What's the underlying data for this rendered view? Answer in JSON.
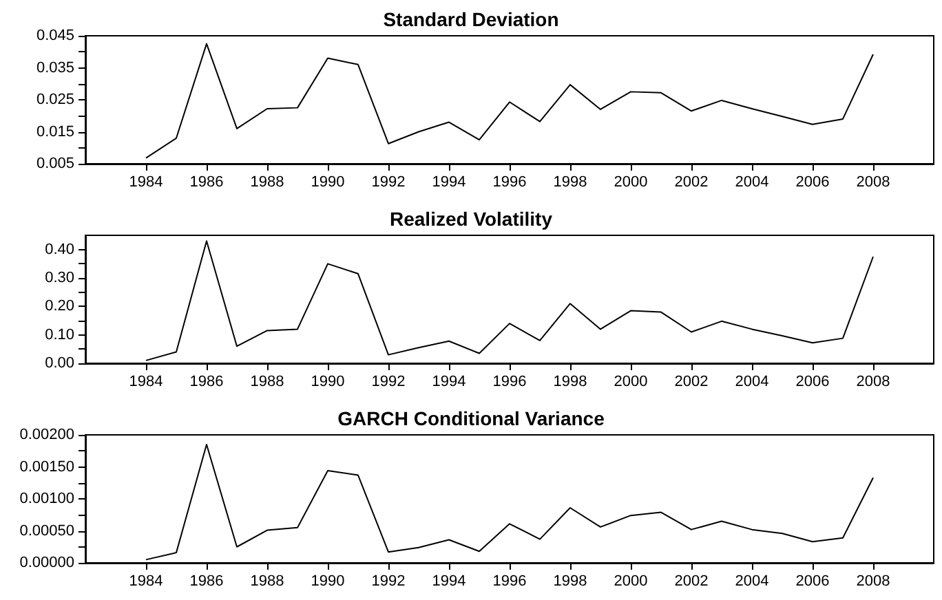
{
  "chart_data": [
    {
      "type": "line",
      "title": "Standard Deviation",
      "x": [
        1984,
        1985,
        1986,
        1987,
        1988,
        1989,
        1990,
        1991,
        1992,
        1993,
        1994,
        1995,
        1996,
        1997,
        1998,
        1999,
        2000,
        2001,
        2002,
        2003,
        2004,
        2005,
        2006,
        2007,
        2008
      ],
      "series": [
        {
          "color": "#000000",
          "values": [
            0.0068,
            0.013,
            0.0425,
            0.016,
            0.0222,
            0.0225,
            0.038,
            0.036,
            0.0113,
            0.015,
            0.018,
            0.0125,
            0.0243,
            0.0182,
            0.0297,
            0.022,
            0.0275,
            0.0272,
            0.0215,
            0.0248,
            0.0222,
            0.0198,
            0.0173,
            0.019,
            0.0392
          ]
        }
      ],
      "xlim": [
        1982,
        2010
      ],
      "xticks": [
        1984,
        1986,
        1988,
        1990,
        1992,
        1994,
        1996,
        1998,
        2000,
        2002,
        2004,
        2006,
        2008
      ],
      "ylim": [
        0.005,
        0.045
      ],
      "yticks": [
        {
          "value": 0.005,
          "label": "0.005"
        },
        {
          "value": 0.01,
          "label": null
        },
        {
          "value": 0.015,
          "label": "0.015"
        },
        {
          "value": 0.02,
          "label": null
        },
        {
          "value": 0.025,
          "label": "0.025"
        },
        {
          "value": 0.03,
          "label": null
        },
        {
          "value": 0.035,
          "label": "0.035"
        },
        {
          "value": 0.04,
          "label": null
        },
        {
          "value": 0.045,
          "label": "0.045"
        }
      ],
      "grid": false,
      "marker": "none",
      "line_style": "solid"
    },
    {
      "type": "line",
      "title": "Realized Volatility",
      "x": [
        1984,
        1985,
        1986,
        1987,
        1988,
        1989,
        1990,
        1991,
        1992,
        1993,
        1994,
        1995,
        1996,
        1997,
        1998,
        1999,
        2000,
        2001,
        2002,
        2003,
        2004,
        2005,
        2006,
        2007,
        2008
      ],
      "series": [
        {
          "color": "#000000",
          "values": [
            0.01,
            0.04,
            0.43,
            0.06,
            0.115,
            0.12,
            0.35,
            0.315,
            0.03,
            0.055,
            0.078,
            0.035,
            0.14,
            0.08,
            0.21,
            0.12,
            0.185,
            0.18,
            0.11,
            0.148,
            0.12,
            0.097,
            0.072,
            0.088,
            0.375
          ]
        }
      ],
      "xlim": [
        1982,
        2010
      ],
      "xticks": [
        1984,
        1986,
        1988,
        1990,
        1992,
        1994,
        1996,
        1998,
        2000,
        2002,
        2004,
        2006,
        2008
      ],
      "ylim": [
        0,
        0.45
      ],
      "yticks": [
        {
          "value": 0,
          "label": "0.00"
        },
        {
          "value": 0.05,
          "label": null
        },
        {
          "value": 0.1,
          "label": "0.10"
        },
        {
          "value": 0.15,
          "label": null
        },
        {
          "value": 0.2,
          "label": "0.20"
        },
        {
          "value": 0.25,
          "label": null
        },
        {
          "value": 0.3,
          "label": "0.30"
        },
        {
          "value": 0.35,
          "label": null
        },
        {
          "value": 0.4,
          "label": "0.40"
        }
      ],
      "grid": false,
      "marker": "none",
      "line_style": "solid"
    },
    {
      "type": "line",
      "title": "GARCH Conditional Variance",
      "x": [
        1984,
        1985,
        1986,
        1987,
        1988,
        1989,
        1990,
        1991,
        1992,
        1993,
        1994,
        1995,
        1996,
        1997,
        1998,
        1999,
        2000,
        2001,
        2002,
        2003,
        2004,
        2005,
        2006,
        2007,
        2008
      ],
      "series": [
        {
          "color": "#000000",
          "values": [
            5e-05,
            0.00016,
            0.00185,
            0.00025,
            0.00051,
            0.00055,
            0.00144,
            0.00137,
            0.00017,
            0.00024,
            0.00036,
            0.00018,
            0.00061,
            0.00037,
            0.00086,
            0.00056,
            0.00074,
            0.00079,
            0.00052,
            0.00065,
            0.00052,
            0.00046,
            0.00033,
            0.00039,
            0.00133
          ]
        }
      ],
      "xlim": [
        1982,
        2010
      ],
      "xticks": [
        1984,
        1986,
        1988,
        1990,
        1992,
        1994,
        1996,
        1998,
        2000,
        2002,
        2004,
        2006,
        2008
      ],
      "ylim": [
        0,
        0.002
      ],
      "yticks": [
        {
          "value": 0,
          "label": "0.00000"
        },
        {
          "value": 0.00025,
          "label": null
        },
        {
          "value": 0.0005,
          "label": "0.00050"
        },
        {
          "value": 0.00075,
          "label": null
        },
        {
          "value": 0.001,
          "label": "0.00100"
        },
        {
          "value": 0.00125,
          "label": null
        },
        {
          "value": 0.0015,
          "label": "0.00150"
        },
        {
          "value": 0.00175,
          "label": null
        },
        {
          "value": 0.002,
          "label": "0.00200"
        }
      ],
      "grid": false,
      "marker": "none",
      "line_style": "solid"
    }
  ]
}
